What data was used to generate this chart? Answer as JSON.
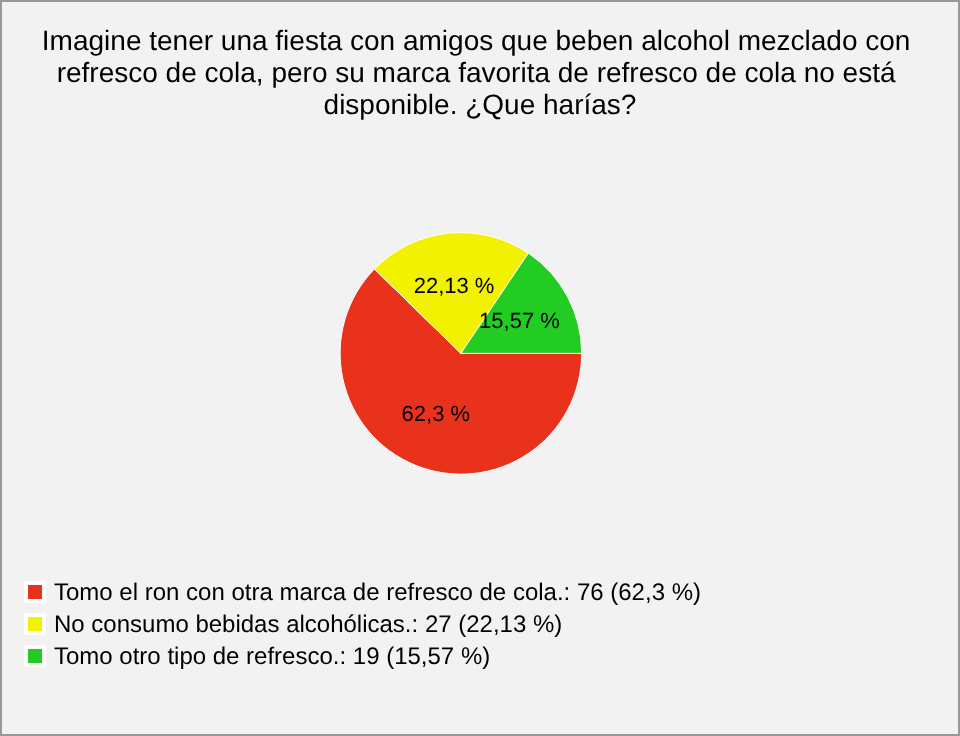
{
  "chart_data": {
    "type": "pie",
    "title": "Imagine tener una fiesta con amigos que beben alcohol mezclado con refresco de cola, pero su marca favorita de refresco de cola no está disponible. ¿Que harías?",
    "categories": [
      "Tomo el ron con otra marca de refresco de cola.: 76 (62,3 %)",
      "No consumo bebidas alcohólicas.: 27 (22,13 %)",
      "Tomo otro tipo de refresco.: 19 (15,57 %)"
    ],
    "values": [
      62.3,
      22.13,
      15.57
    ],
    "value_labels": [
      "62,3 %",
      "22,13 %",
      "15,57 %"
    ],
    "colors": [
      "#e8321c",
      "#f2f200",
      "#22cc22"
    ],
    "legend": "bottom left"
  }
}
